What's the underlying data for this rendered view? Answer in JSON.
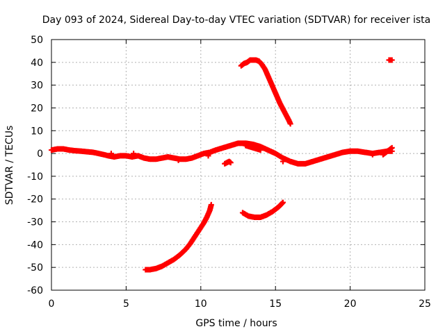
{
  "chart_data": {
    "type": "scatter",
    "title": "Day 093 of 2024, Sidereal Day-to-day VTEC variation (SDTVAR) for receiver ista",
    "xlabel": "GPS time / hours",
    "ylabel": "SDTVAR / TECUs",
    "xlim": [
      0,
      25
    ],
    "ylim": [
      -60,
      50
    ],
    "xticks": [
      0,
      5,
      10,
      15,
      20,
      25
    ],
    "yticks": [
      -60,
      -50,
      -40,
      -30,
      -20,
      -10,
      0,
      10,
      20,
      30,
      40,
      50
    ],
    "grid": true,
    "legend": "none",
    "marker_color": "#ff0000",
    "series": [
      {
        "name": "baseline",
        "points": [
          [
            0.0,
            1.5
          ],
          [
            0.4,
            2.0
          ],
          [
            0.8,
            2.0
          ],
          [
            1.2,
            1.5
          ],
          [
            1.6,
            1.2
          ],
          [
            2.0,
            1.0
          ],
          [
            2.8,
            0.5
          ],
          [
            3.5,
            -0.5
          ],
          [
            3.8,
            -1.0
          ],
          [
            4.2,
            -1.5
          ],
          [
            4.6,
            -1.0
          ],
          [
            5.0,
            -1.0
          ],
          [
            5.4,
            -1.5
          ],
          [
            5.8,
            -1.0
          ],
          [
            6.2,
            -2.0
          ],
          [
            6.6,
            -2.5
          ],
          [
            7.0,
            -2.5
          ],
          [
            7.4,
            -2.0
          ],
          [
            7.8,
            -1.5
          ],
          [
            8.2,
            -2.0
          ],
          [
            8.6,
            -2.5
          ],
          [
            9.0,
            -2.5
          ],
          [
            9.4,
            -2.0
          ],
          [
            9.8,
            -1.0
          ],
          [
            10.2,
            0.0
          ],
          [
            10.6,
            0.5
          ],
          [
            11.0,
            1.5
          ],
          [
            11.5,
            2.5
          ],
          [
            12.0,
            3.5
          ],
          [
            12.5,
            4.5
          ],
          [
            13.0,
            4.5
          ],
          [
            13.5,
            4.0
          ],
          [
            14.0,
            3.0
          ],
          [
            14.5,
            1.5
          ],
          [
            15.0,
            0.0
          ],
          [
            15.5,
            -2.0
          ],
          [
            16.0,
            -3.5
          ],
          [
            16.5,
            -4.5
          ],
          [
            17.0,
            -4.5
          ],
          [
            17.5,
            -3.5
          ],
          [
            18.0,
            -2.5
          ],
          [
            18.5,
            -1.5
          ],
          [
            19.0,
            -0.5
          ],
          [
            19.5,
            0.5
          ],
          [
            20.0,
            1.0
          ],
          [
            20.5,
            1.0
          ],
          [
            21.0,
            0.5
          ],
          [
            21.5,
            0.0
          ],
          [
            22.0,
            0.5
          ],
          [
            22.5,
            1.0
          ],
          [
            22.8,
            1.0
          ],
          [
            11.6,
            -4.5
          ],
          [
            11.9,
            -3.5
          ],
          [
            12.0,
            -4.0
          ],
          [
            13.0,
            3.5
          ],
          [
            14.0,
            1.5
          ],
          [
            15.5,
            -3.5
          ],
          [
            8.5,
            -3.0
          ],
          [
            10.5,
            -1.0
          ],
          [
            21.5,
            -0.5
          ],
          [
            22.8,
            2.5
          ],
          [
            22.2,
            -0.5
          ],
          [
            4.0,
            0.0
          ],
          [
            5.5,
            0.0
          ]
        ]
      },
      {
        "name": "upper-arc",
        "points": [
          [
            12.7,
            38.5
          ],
          [
            12.9,
            39.5
          ],
          [
            13.1,
            40.0
          ],
          [
            13.3,
            41.0
          ],
          [
            13.5,
            41.0
          ],
          [
            13.7,
            41.0
          ],
          [
            13.9,
            40.5
          ],
          [
            14.1,
            39.0
          ],
          [
            14.3,
            37.0
          ],
          [
            14.5,
            34.0
          ],
          [
            14.7,
            31.0
          ],
          [
            14.9,
            28.0
          ],
          [
            15.1,
            25.0
          ],
          [
            15.3,
            22.0
          ],
          [
            15.5,
            19.5
          ],
          [
            15.7,
            17.0
          ],
          [
            15.9,
            14.5
          ],
          [
            16.0,
            13.0
          ]
        ]
      },
      {
        "name": "upper-isolated",
        "points": [
          [
            22.6,
            41.0
          ],
          [
            22.8,
            41.0
          ]
        ]
      },
      {
        "name": "lower-rising",
        "points": [
          [
            6.3,
            -51.0
          ],
          [
            6.6,
            -51.0
          ],
          [
            7.0,
            -50.5
          ],
          [
            7.4,
            -49.5
          ],
          [
            7.8,
            -48.0
          ],
          [
            8.2,
            -46.5
          ],
          [
            8.6,
            -44.5
          ],
          [
            9.0,
            -42.0
          ],
          [
            9.3,
            -39.5
          ],
          [
            9.6,
            -36.5
          ],
          [
            9.9,
            -33.5
          ],
          [
            10.2,
            -30.5
          ],
          [
            10.4,
            -28.0
          ],
          [
            10.6,
            -25.0
          ],
          [
            10.7,
            -22.5
          ]
        ]
      },
      {
        "name": "lower-arc",
        "points": [
          [
            12.8,
            -26.0
          ],
          [
            13.2,
            -27.5
          ],
          [
            13.6,
            -28.0
          ],
          [
            14.0,
            -28.0
          ],
          [
            14.4,
            -27.0
          ],
          [
            14.8,
            -25.5
          ],
          [
            15.2,
            -23.5
          ],
          [
            15.5,
            -21.5
          ]
        ]
      }
    ]
  }
}
